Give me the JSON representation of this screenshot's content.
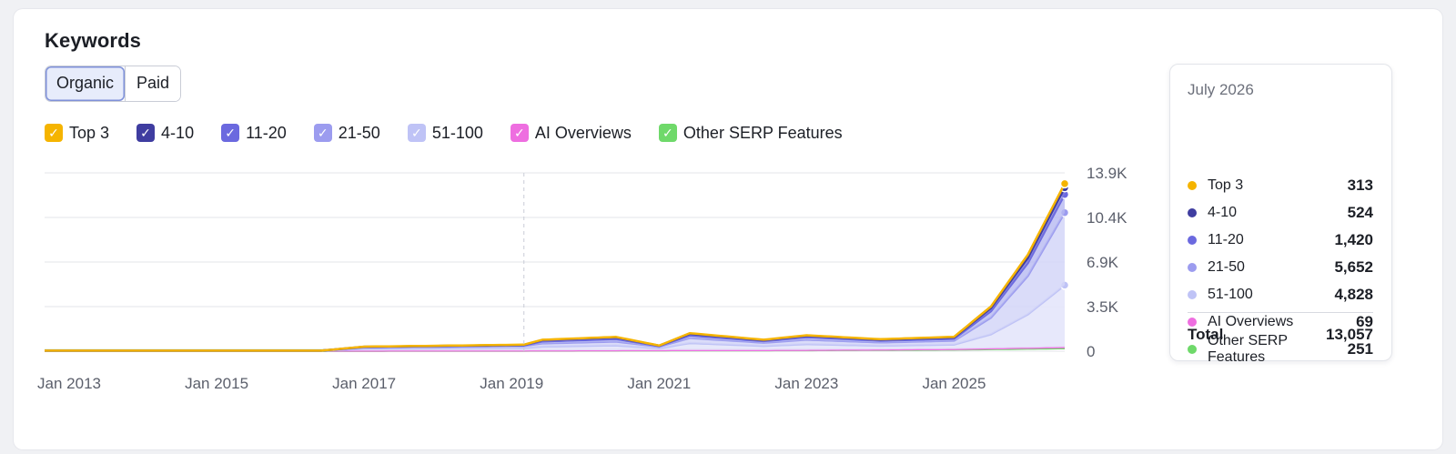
{
  "card": {
    "title": "Keywords",
    "tabs": [
      {
        "label": "Organic",
        "active": true
      },
      {
        "label": "Paid",
        "active": false
      }
    ]
  },
  "legend": [
    {
      "label": "Top 3",
      "color": "#f5b400"
    },
    {
      "label": "4-10",
      "color": "#3f3da0"
    },
    {
      "label": "11-20",
      "color": "#6b69df"
    },
    {
      "label": "21-50",
      "color": "#9c9cef"
    },
    {
      "label": "51-100",
      "color": "#bfc3f6"
    },
    {
      "label": "AI Overviews",
      "color": "#ee6ee0"
    },
    {
      "label": "Other SERP Features",
      "color": "#6fd96a"
    }
  ],
  "chart_data": {
    "type": "area",
    "stacked": true,
    "x_tick_labels": [
      "Jan 2013",
      "Jan 2015",
      "Jan 2017",
      "Jan 2019",
      "Jan 2021",
      "Jan 2023",
      "Jan 2025"
    ],
    "y_tick_labels": [
      "13.9K",
      "10.4K",
      "6.9K",
      "3.5K",
      "0"
    ],
    "ylim": [
      0,
      13900
    ],
    "y_axis_position": "right",
    "grid": true,
    "x_range": [
      "2012-09",
      "2026-07"
    ],
    "hover_marker": "2019-03",
    "series": [
      {
        "name": "Other SERP Features",
        "color": "#6fd96a",
        "x": [
          "2012-09",
          "2016-06",
          "2019-03",
          "2021-01",
          "2023-01",
          "2025-01",
          "2026-07"
        ],
        "values": [
          40,
          40,
          60,
          80,
          100,
          150,
          251
        ]
      },
      {
        "name": "AI Overviews",
        "color": "#ee6ee0",
        "x": [
          "2012-09",
          "2016-06",
          "2019-03",
          "2021-01",
          "2023-01",
          "2025-01",
          "2026-07"
        ],
        "values": [
          0,
          0,
          0,
          0,
          0,
          20,
          69
        ]
      },
      {
        "name": "51-100",
        "color": "#bfc3f6",
        "x": [
          "2012-09",
          "2016-06",
          "2017-01",
          "2019-03",
          "2019-06",
          "2020-06",
          "2021-01",
          "2021-06",
          "2022-06",
          "2023-01",
          "2024-01",
          "2025-01",
          "2025-07",
          "2026-01",
          "2026-07"
        ],
        "values": [
          0,
          0,
          150,
          200,
          300,
          380,
          150,
          550,
          320,
          450,
          300,
          350,
          1100,
          2600,
          4828
        ]
      },
      {
        "name": "21-50",
        "color": "#9c9cef",
        "x": [
          "2012-09",
          "2016-06",
          "2017-01",
          "2019-03",
          "2019-06",
          "2020-06",
          "2021-01",
          "2021-06",
          "2022-06",
          "2023-01",
          "2024-01",
          "2025-01",
          "2025-07",
          "2026-01",
          "2026-07"
        ],
        "values": [
          0,
          0,
          100,
          150,
          250,
          300,
          120,
          400,
          250,
          350,
          250,
          300,
          1300,
          3000,
          5652
        ]
      },
      {
        "name": "11-20",
        "color": "#6b69df",
        "x": [
          "2012-09",
          "2016-06",
          "2017-01",
          "2019-03",
          "2019-06",
          "2020-06",
          "2021-01",
          "2021-06",
          "2022-06",
          "2023-01",
          "2024-01",
          "2025-01",
          "2025-07",
          "2026-01",
          "2026-07"
        ],
        "values": [
          0,
          0,
          30,
          50,
          150,
          200,
          50,
          200,
          120,
          200,
          140,
          150,
          500,
          1000,
          1420
        ]
      },
      {
        "name": "4-10",
        "color": "#3f3da0",
        "x": [
          "2012-09",
          "2016-06",
          "2017-01",
          "2019-03",
          "2019-06",
          "2020-06",
          "2021-01",
          "2021-06",
          "2022-06",
          "2023-01",
          "2024-01",
          "2025-01",
          "2025-07",
          "2026-01",
          "2026-07"
        ],
        "values": [
          0,
          0,
          20,
          30,
          100,
          120,
          30,
          120,
          80,
          100,
          80,
          100,
          250,
          400,
          524
        ]
      },
      {
        "name": "Top 3",
        "color": "#f5b400",
        "x": [
          "2012-09",
          "2016-06",
          "2017-01",
          "2019-03",
          "2019-06",
          "2020-06",
          "2021-01",
          "2021-06",
          "2022-06",
          "2023-01",
          "2024-01",
          "2025-01",
          "2025-07",
          "2026-01",
          "2026-07"
        ],
        "values": [
          0,
          0,
          10,
          20,
          30,
          40,
          10,
          50,
          30,
          40,
          30,
          50,
          120,
          250,
          313
        ]
      }
    ]
  },
  "tooltip": {
    "date": "July 2026",
    "rows": [
      {
        "label": "Top 3",
        "value": "313",
        "color": "#f5b400"
      },
      {
        "label": "4-10",
        "value": "524",
        "color": "#3f3da0"
      },
      {
        "label": "11-20",
        "value": "1,420",
        "color": "#6b69df"
      },
      {
        "label": "21-50",
        "value": "5,652",
        "color": "#9c9cef"
      },
      {
        "label": "51-100",
        "value": "4,828",
        "color": "#bfc3f6"
      },
      {
        "label": "AI Overviews",
        "value": "69",
        "color": "#ee6ee0"
      },
      {
        "label": "Other SERP Features",
        "value": "251",
        "color": "#6fd96a"
      }
    ],
    "total_label": "Total",
    "total_value": "13,057"
  }
}
